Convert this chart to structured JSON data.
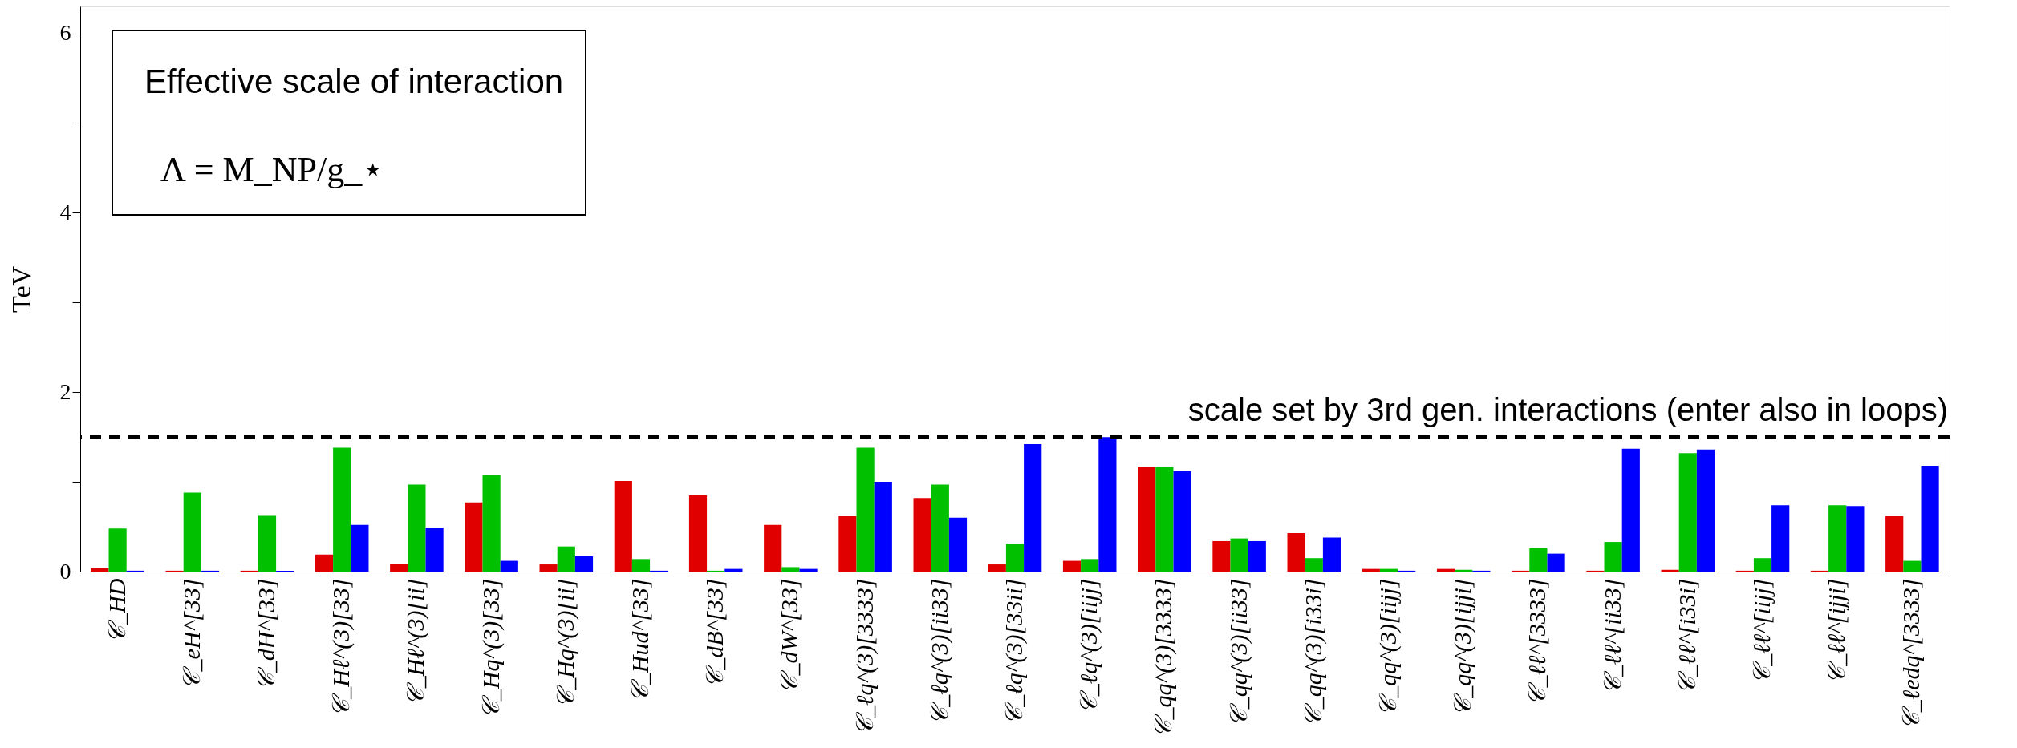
{
  "chart_data": {
    "type": "bar",
    "ylabel": "TeV",
    "categories": [
      "𝒞_HD",
      "𝒞_eH^[33]",
      "𝒞_dH^[33]",
      "𝒞_Hℓ^(3)[33]",
      "𝒞_Hℓ^(3)[ii]",
      "𝒞_Hq^(3)[33]",
      "𝒞_Hq^(3)[ii]",
      "𝒞_Hud^[33]",
      "𝒞_dB^[33]",
      "𝒞_dW^[33]",
      "𝒞_ℓq^(3)[3333]",
      "𝒞_ℓq^(3)[ii33]",
      "𝒞_ℓq^(3)[33ii]",
      "𝒞_ℓq^(3)[iijj]",
      "𝒞_qq^(3)[3333]",
      "𝒞_qq^(3)[ii33]",
      "𝒞_qq^(3)[i33i]",
      "𝒞_qq^(3)[iijj]",
      "𝒞_qq^(3)[ijji]",
      "𝒞_ℓℓ^[3333]",
      "𝒞_ℓℓ^[ii33]",
      "𝒞_ℓℓ^[i33i]",
      "𝒞_ℓℓ^[iijj]",
      "𝒞_ℓℓ^[ijji]",
      "𝒞_ℓedq^[3333]"
    ],
    "series": [
      {
        "color": "#e00000",
        "values": [
          0.04,
          0.01,
          0.01,
          0.19,
          0.08,
          0.77,
          0.08,
          1.01,
          0.85,
          0.52,
          0.62,
          0.82,
          0.08,
          0.12,
          1.17,
          0.34,
          0.43,
          0.03,
          0.03,
          0.01,
          0.01,
          0.02,
          0.01,
          0.01,
          0.62
        ]
      },
      {
        "color": "#00c000",
        "values": [
          0.48,
          0.88,
          0.63,
          1.38,
          0.97,
          1.08,
          0.28,
          0.14,
          0.01,
          0.05,
          1.38,
          0.97,
          0.31,
          0.14,
          1.17,
          0.37,
          0.15,
          0.03,
          0.02,
          0.26,
          0.33,
          1.32,
          0.15,
          0.74,
          0.12
        ]
      },
      {
        "color": "#0000ff",
        "values": [
          0.01,
          0.01,
          0.01,
          0.52,
          0.49,
          0.12,
          0.17,
          0.01,
          0.03,
          0.03,
          1.0,
          0.6,
          1.42,
          1.5,
          1.12,
          0.34,
          0.38,
          0.01,
          0.01,
          0.2,
          1.37,
          1.36,
          0.74,
          0.73,
          1.18
        ]
      }
    ],
    "ylim": [
      0,
      6.3
    ],
    "yticks": [
      0,
      {
        "value": 1,
        "label": null
      },
      2,
      {
        "value": 3,
        "label": null
      },
      4,
      {
        "value": 5,
        "label": null
      },
      6
    ],
    "ref_lines": [
      {
        "axis": "y",
        "value": 1.5,
        "label": "scale set by 3rd gen. interactions (enter also in loops)",
        "color": "#000000",
        "line_style": "dashed"
      }
    ],
    "annotations": [
      "Effective scale of interaction",
      "Λ = M_NP/g_⋆"
    ],
    "grid": false,
    "legend": false
  }
}
